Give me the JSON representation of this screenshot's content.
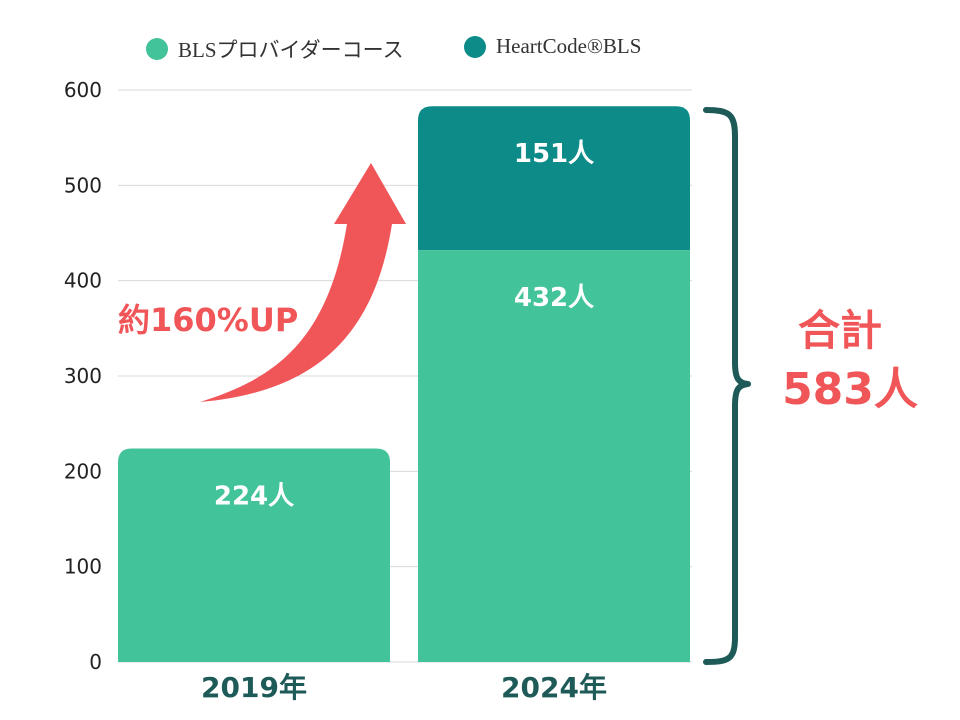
{
  "chart_data": {
    "type": "bar",
    "stacked": true,
    "categories": [
      "2019年",
      "2024年"
    ],
    "series": [
      {
        "name": "BLSプロバイダーコース",
        "color": "#43c39a",
        "values": [
          224,
          432
        ],
        "labels": [
          "224人",
          "432人"
        ]
      },
      {
        "name": "HeartCode®BLS",
        "color": "#0c8b88",
        "values": [
          0,
          151
        ],
        "labels": [
          "",
          "151人"
        ]
      }
    ],
    "ylim": [
      0,
      600
    ],
    "yticks": [
      "0",
      "100",
      "200",
      "300",
      "400",
      "500",
      "600"
    ],
    "grid": true,
    "legend": "top",
    "annotations": {
      "growth": "約160%UP",
      "total_label": "合計",
      "total_value": "583人"
    },
    "colors": {
      "arrow": "#f05558",
      "accent_text": "#f05558",
      "brace": "#1d5a58",
      "category_text": "#1d5a58",
      "tick_text": "#222222",
      "grid": "#d9d9d9"
    }
  }
}
